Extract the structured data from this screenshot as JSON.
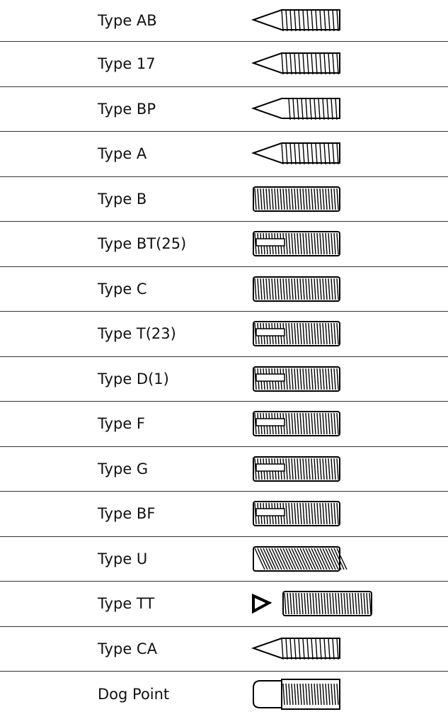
{
  "table": {
    "rows": [
      "Type AB",
      "Type 17",
      "Type BP",
      "Type A",
      "Type B",
      "Type BT(25)",
      "Type C",
      "Type T(23)",
      "Type D(1)",
      "Type F",
      "Type G",
      "Type BF",
      "Type U",
      "Type TT",
      "Type CA",
      "Dog Point"
    ]
  }
}
